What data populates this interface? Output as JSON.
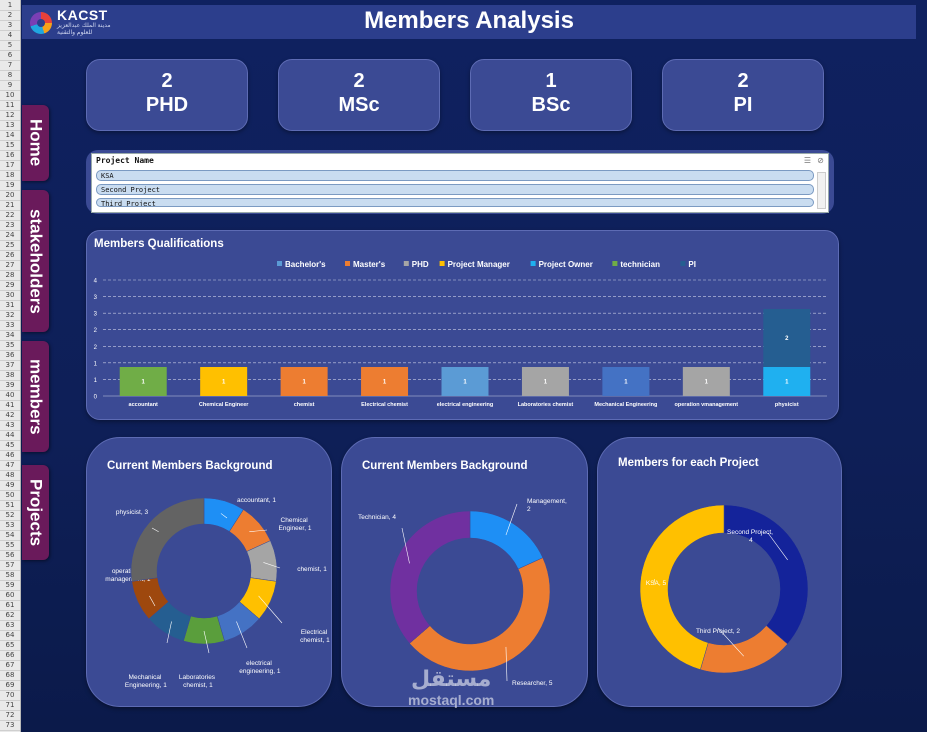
{
  "row_numbers": [
    "1",
    "2",
    "3",
    "4",
    "5",
    "6",
    "7",
    "8",
    "9",
    "10",
    "11",
    "12",
    "13",
    "14",
    "15",
    "16",
    "17",
    "18",
    "19",
    "20",
    "21",
    "22",
    "23",
    "24",
    "25",
    "26",
    "27",
    "28",
    "29",
    "30",
    "31",
    "32",
    "33",
    "34",
    "35",
    "36",
    "37",
    "38",
    "39",
    "40",
    "41",
    "42",
    "43",
    "44",
    "45",
    "46",
    "47",
    "48",
    "49",
    "50",
    "51",
    "52",
    "53",
    "54",
    "55",
    "56",
    "57",
    "58",
    "59",
    "60",
    "61",
    "62",
    "63",
    "64",
    "65",
    "66",
    "67",
    "68",
    "69",
    "70",
    "71",
    "72",
    "73"
  ],
  "header": {
    "title": "Members Analysis",
    "logo_name": "KACST",
    "logo_sub1": "مدينة الملك عبدالعزيز",
    "logo_sub2": "للعلوم والتقنية"
  },
  "nav": {
    "home": "Home",
    "stakeholders": "stakeholders",
    "members": "members",
    "projects": "Projects"
  },
  "kpis": [
    {
      "value": "2",
      "label": "PHD"
    },
    {
      "value": "2",
      "label": "MSc"
    },
    {
      "value": "1",
      "label": "BSc"
    },
    {
      "value": "2",
      "label": "PI"
    }
  ],
  "slicer": {
    "title": "Project Name",
    "items": [
      "KSA",
      "Second Project",
      "Third Project"
    ]
  },
  "qualifications_chart": {
    "panel_title": "Members Qualifications"
  },
  "donut1": {
    "panel_title": "Current Members Background"
  },
  "donut2": {
    "panel_title": "Current Members Background"
  },
  "donut3": {
    "panel_title": "Members for each Project"
  },
  "watermark": {
    "arabic": "مستقل",
    "english": "mostaql.com"
  },
  "colors": {
    "background": "#0f2160",
    "panel": "#3b4a94",
    "header": "#2c3e8c",
    "nav_tab": "#6a1a5b"
  },
  "chart_data": [
    {
      "type": "bar",
      "stacked": true,
      "title": "Members Qualifications",
      "categories": [
        "accountant",
        "Chemical Engineer",
        "chemist",
        "Electrical chemist",
        "electrical engineering",
        "Laboratories chemist",
        "Mechanical Engineering",
        "operation vmanagement",
        "physicist"
      ],
      "series": [
        {
          "name": "Bachelor's",
          "color": "#5b9bd5",
          "values": [
            0,
            0,
            0,
            0,
            1,
            0,
            1,
            0,
            0
          ]
        },
        {
          "name": "Master's",
          "color": "#ed7d31",
          "values": [
            0,
            0,
            1,
            1,
            0,
            0,
            0,
            0,
            0
          ]
        },
        {
          "name": "PHD",
          "color": "#a5a5a5",
          "values": [
            0,
            0,
            0,
            0,
            0,
            1,
            0,
            1,
            0
          ]
        },
        {
          "name": "Project Manager",
          "color": "#ffc000",
          "values": [
            0,
            1,
            0,
            0,
            0,
            0,
            0,
            0,
            0
          ]
        },
        {
          "name": "Project Owner",
          "color": "#1fb0f0",
          "values": [
            0,
            0,
            0,
            0,
            0,
            0,
            0,
            0,
            1
          ]
        },
        {
          "name": "technician",
          "color": "#70ad47",
          "values": [
            1,
            0,
            0,
            0,
            0,
            0,
            0,
            0,
            0
          ]
        },
        {
          "name": "PI",
          "color": "#255e91",
          "values": [
            0,
            0,
            0,
            0,
            0,
            0,
            0,
            0,
            2
          ]
        }
      ],
      "bar_colors": [
        "#70ad47",
        "#ffc000",
        "#ed7d31",
        "#ed7d31",
        "#5b9bd5",
        "#a5a5a5",
        "#4472c4",
        "#a5a5a5",
        "#1fb0f0"
      ],
      "y_ticks": [
        "0",
        "1",
        "1",
        "2",
        "2",
        "3",
        "3",
        "4"
      ],
      "ylim": [
        0,
        4
      ],
      "grid": true,
      "legend": "top"
    },
    {
      "type": "pie",
      "donut": true,
      "title": "Current Members Background",
      "labels": [
        "accountant",
        "Chemical Engineer",
        "chemist",
        "Electrical chemist",
        "electrical engineering",
        "Laboratories chemist",
        "Mechanical Engineering",
        "operations management",
        "physicist"
      ],
      "values": [
        1,
        1,
        1,
        1,
        1,
        1,
        1,
        1,
        3
      ],
      "colors": [
        "#1e8ff5",
        "#ed7d31",
        "#a5a5a5",
        "#ffc000",
        "#4472c4",
        "#5a9e3c",
        "#255e91",
        "#9e480e",
        "#636363"
      ],
      "data_labels": [
        "accountant, 1",
        "Chemical Engineer, 1",
        "chemist, 1",
        "Electrical chemist, 1",
        "electrical engineering, 1",
        "Laboratories chemist, 1",
        "Mechanical Engineering, 1",
        "operations management, 1",
        "physicist, 3"
      ]
    },
    {
      "type": "pie",
      "donut": true,
      "title": "Current Members Background",
      "labels": [
        "Management",
        "Researcher",
        "Technician"
      ],
      "values": [
        2,
        5,
        4
      ],
      "colors": [
        "#1e8ff5",
        "#ed7d31",
        "#7030a0"
      ],
      "data_labels": [
        "Management, 2",
        "Researcher, 5",
        "Technician, 4"
      ]
    },
    {
      "type": "pie",
      "donut": true,
      "title": "Members for each Project",
      "labels": [
        "Second Project",
        "Third Project",
        "KSA"
      ],
      "values": [
        4,
        2,
        5
      ],
      "colors": [
        "#14239a",
        "#ed7d31",
        "#ffc000"
      ],
      "data_labels": [
        "Second Project, 4",
        "Third Project, 2",
        "KSA, 5"
      ]
    }
  ]
}
